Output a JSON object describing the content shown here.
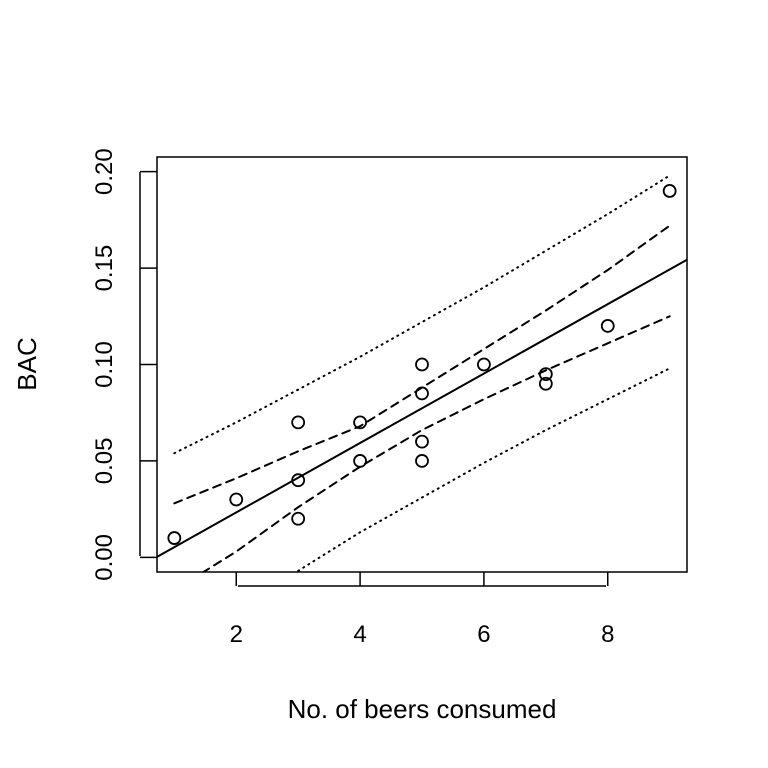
{
  "chart_data": {
    "type": "scatter",
    "title": "",
    "xlabel": "No. of beers consumed",
    "ylabel": "BAC",
    "xlim": [
      0.72,
      9.28
    ],
    "ylim": [
      -0.0076,
      0.2076
    ],
    "xticks": [
      2,
      4,
      6,
      8
    ],
    "xtick_labels": [
      "2",
      "4",
      "6",
      "8"
    ],
    "yticks": [
      0.0,
      0.05,
      0.1,
      0.15,
      0.2
    ],
    "ytick_labels": [
      "0.00",
      "0.05",
      "0.10",
      "0.15",
      "0.20"
    ],
    "grid": false,
    "points": [
      {
        "x": 1,
        "y": 0.01
      },
      {
        "x": 2,
        "y": 0.03
      },
      {
        "x": 3,
        "y": 0.07
      },
      {
        "x": 3,
        "y": 0.04
      },
      {
        "x": 3,
        "y": 0.02
      },
      {
        "x": 4,
        "y": 0.07
      },
      {
        "x": 4,
        "y": 0.05
      },
      {
        "x": 5,
        "y": 0.1
      },
      {
        "x": 5,
        "y": 0.085
      },
      {
        "x": 5,
        "y": 0.06
      },
      {
        "x": 5,
        "y": 0.05
      },
      {
        "x": 6,
        "y": 0.1
      },
      {
        "x": 7,
        "y": 0.095
      },
      {
        "x": 7,
        "y": 0.09
      },
      {
        "x": 8,
        "y": 0.12
      },
      {
        "x": 9,
        "y": 0.19
      }
    ],
    "fit_line": {
      "name": "regression fit",
      "style": "solid",
      "intercept": -0.0127,
      "slope": 0.018
    },
    "confidence_band": {
      "name": "confidence band",
      "style": "dashed",
      "upper": {
        "x": [
          1,
          2,
          3,
          4,
          5,
          6,
          7,
          8,
          9
        ],
        "y": [
          0.028,
          0.041,
          0.055,
          0.068,
          0.088,
          0.108,
          0.128,
          0.149,
          0.172
        ]
      },
      "lower": {
        "x": [
          1.45,
          2,
          3,
          4,
          5,
          6,
          7,
          8,
          9
        ],
        "y": [
          -0.008,
          0.003,
          0.026,
          0.047,
          0.066,
          0.082,
          0.097,
          0.111,
          0.125
        ]
      }
    },
    "prediction_band": {
      "name": "prediction band",
      "style": "dotted",
      "upper": {
        "x": [
          1,
          2,
          3,
          4,
          5,
          6,
          7,
          8,
          9
        ],
        "y": [
          0.054,
          0.07,
          0.087,
          0.104,
          0.122,
          0.14,
          0.159,
          0.178,
          0.198
        ]
      },
      "lower": {
        "x": [
          3,
          4,
          5,
          6,
          7,
          8,
          9
        ],
        "y": [
          -0.007,
          0.013,
          0.031,
          0.049,
          0.066,
          0.082,
          0.098
        ]
      }
    }
  }
}
